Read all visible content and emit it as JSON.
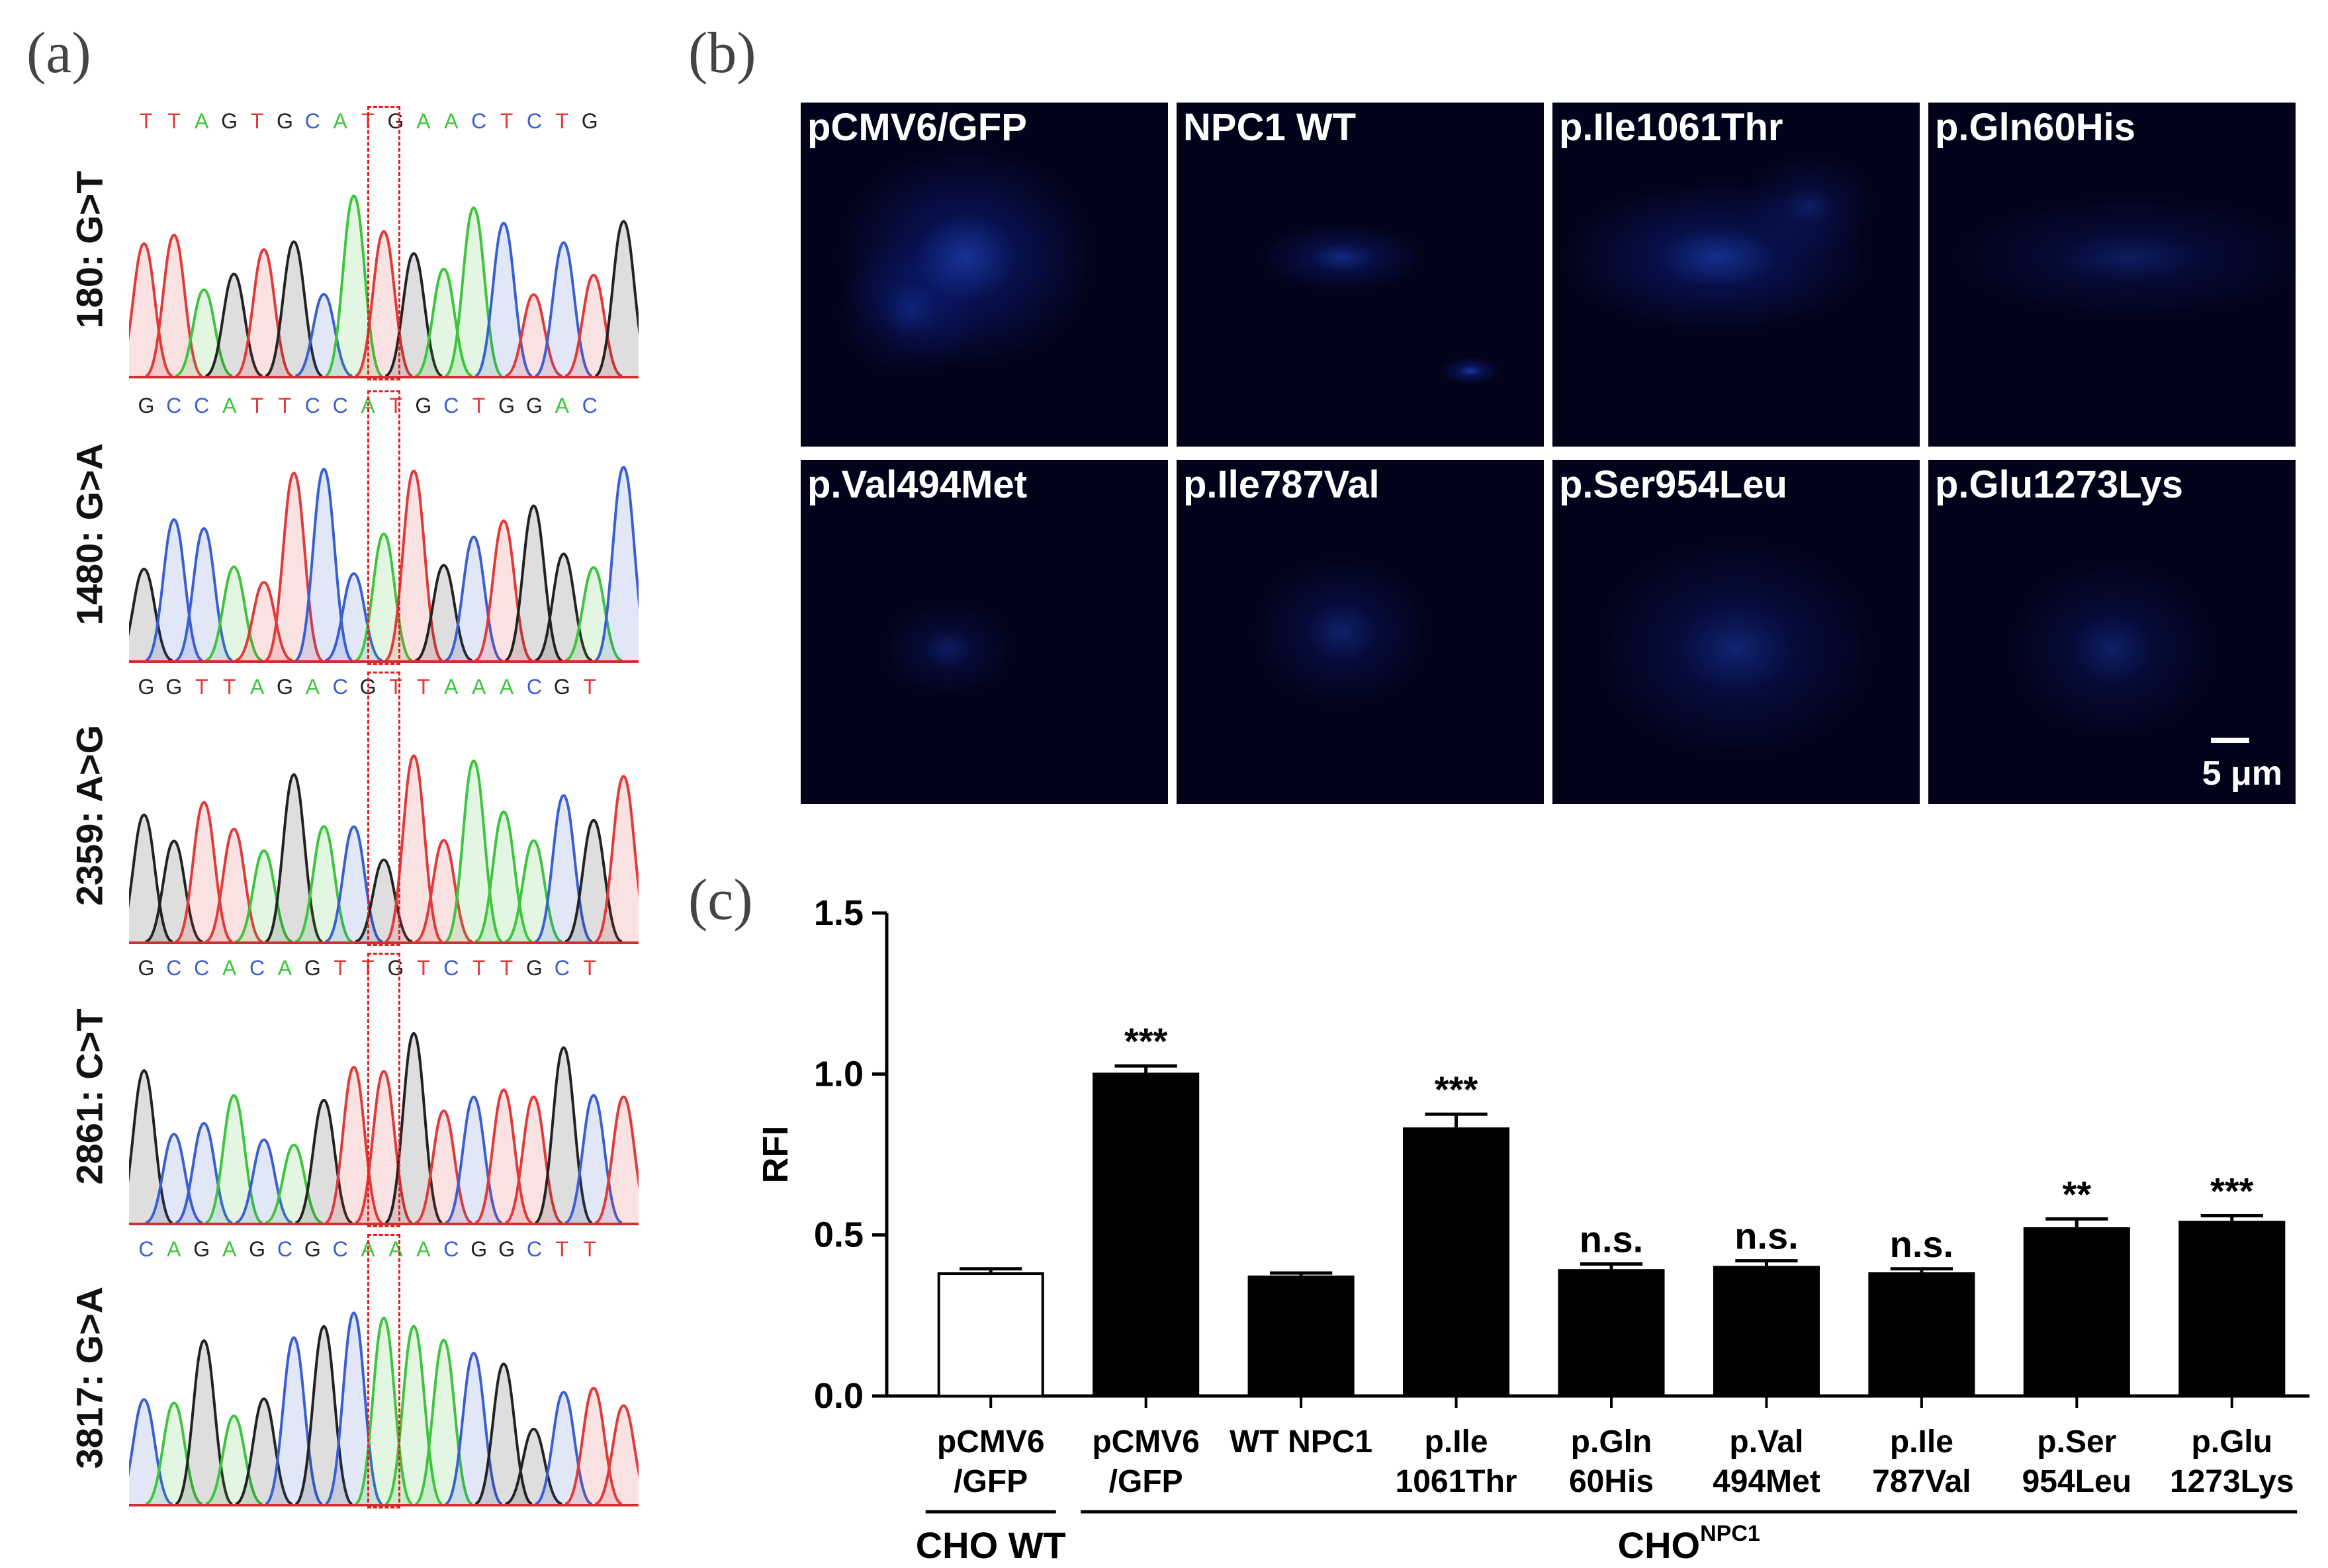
{
  "panels": {
    "a": "(a)",
    "b": "(b)",
    "c": "(c)"
  },
  "chromatograms": [
    {
      "label": "180: G>T",
      "sequence": "TTAGTGCATGAACTCTG"
    },
    {
      "label": "1480: G>A",
      "sequence": "GCCATTCCATGCTGGAC"
    },
    {
      "label": "2359: A>G",
      "sequence": "GGTTAGACGTTAAACGT"
    },
    {
      "label": "2861: C>T",
      "sequence": "GCCACAGTTGTCTTGCT"
    },
    {
      "label": "3817: G>A",
      "sequence": "CAGAGCGCAAACGGCTT"
    }
  ],
  "base_colors": {
    "A": "#3ec43e",
    "C": "#3a5fd0",
    "G": "#222222",
    "T": "#e03a3a"
  },
  "highlight_color": "#e02020",
  "micrographs": [
    {
      "label": "pCMV6/GFP"
    },
    {
      "label": "NPC1 WT"
    },
    {
      "label": "p.Ile1061Thr"
    },
    {
      "label": "p.Gln60His"
    },
    {
      "label": "p.Val494Met"
    },
    {
      "label": "p.Ile787Val"
    },
    {
      "label": "p.Ser954Leu"
    },
    {
      "label": "p.Glu1273Lys"
    }
  ],
  "scale_bar": "5 μm",
  "chart_data": {
    "type": "bar",
    "ylabel": "RFI",
    "ylim": [
      0,
      1.5
    ],
    "yticks": [
      "0.0",
      "0.5",
      "1.0",
      "1.5"
    ],
    "ytick_values": [
      0,
      0.5,
      1.0,
      1.5
    ],
    "categories": [
      {
        "line1": "pCMV6",
        "line2": "/GFP"
      },
      {
        "line1": "pCMV6",
        "line2": "/GFP"
      },
      {
        "line1": "WT NPC1",
        "line2": ""
      },
      {
        "line1": "p.Ile",
        "line2": "1061Thr"
      },
      {
        "line1": "p.Gln",
        "line2": "60His"
      },
      {
        "line1": "p.Val",
        "line2": "494Met"
      },
      {
        "line1": "p.Ile",
        "line2": "787Val"
      },
      {
        "line1": "p.Ser",
        "line2": "954Leu"
      },
      {
        "line1": "p.Glu",
        "line2": "1273Lys"
      }
    ],
    "values": [
      0.38,
      1.0,
      0.37,
      0.83,
      0.39,
      0.4,
      0.38,
      0.52,
      0.54
    ],
    "errors": [
      0.015,
      0.025,
      0.012,
      0.045,
      0.02,
      0.02,
      0.015,
      0.03,
      0.02
    ],
    "fills": [
      "#ffffff",
      "#000000",
      "#000000",
      "#000000",
      "#000000",
      "#000000",
      "#000000",
      "#000000",
      "#000000"
    ],
    "significance": [
      "",
      "***",
      "",
      "***",
      "n.s.",
      "n.s.",
      "n.s.",
      "**",
      "***"
    ],
    "groups": [
      {
        "label": "CHO WT",
        "superscript": "",
        "from": 0,
        "to": 0
      },
      {
        "label": "CHO",
        "superscript": "NPC1",
        "from": 1,
        "to": 8
      }
    ]
  }
}
